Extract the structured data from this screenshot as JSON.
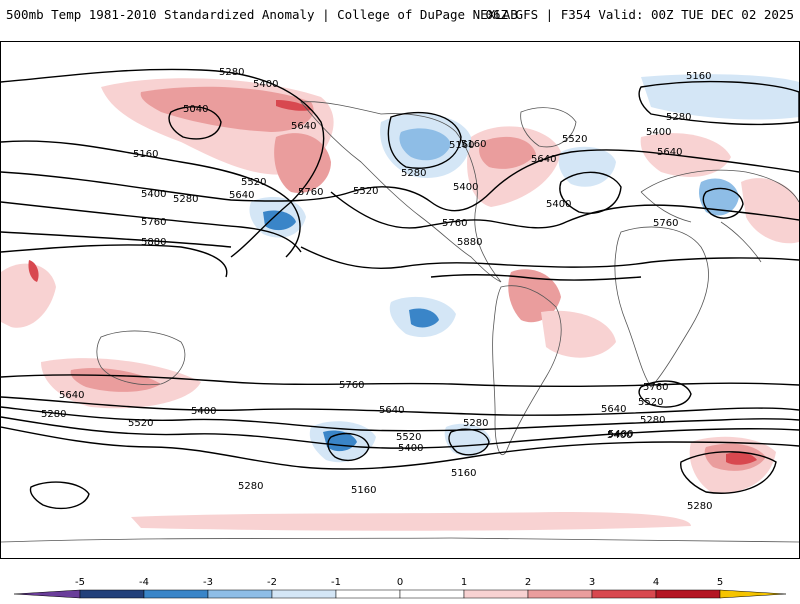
{
  "header": {
    "title_left": "500mb Temp 1981-2010 Standardized Anomaly | College of DuPage NEXLAB",
    "title_right": "06Z GFS | F354 Valid: 00Z TUE DEC 02 2025"
  },
  "colors": {
    "contour": "#000000",
    "coast": "#555555",
    "neg5": "#6a3d9a",
    "neg4": "#22407a",
    "neg3": "#3a85c8",
    "neg2": "#8ebde6",
    "neg1": "#d4e6f6",
    "zero": "#ffffff",
    "pos1": "#f8d2d2",
    "pos2": "#ea9d9d",
    "pos3": "#d8484f",
    "pos4": "#b41523",
    "pos5": "#6e0010",
    "over": "#f5c400"
  },
  "contour_labels": [
    "5280",
    "5400",
    "5040",
    "5640",
    "5160",
    "5400",
    "5280",
    "5520",
    "5640",
    "5760",
    "5760",
    "5880",
    "5160",
    "5280",
    "5160",
    "5400",
    "5520",
    "5760",
    "5880",
    "5520",
    "5640",
    "5400",
    "5160",
    "5400",
    "5280",
    "5640",
    "5760",
    "5640",
    "5400",
    "5760",
    "5520",
    "5400",
    "5280",
    "5640",
    "5520",
    "5400",
    "5280",
    "5160",
    "5280",
    "5760",
    "5640",
    "5520",
    "5400",
    "5280",
    "5160",
    "5280"
  ],
  "colorbar": {
    "ticks": [
      "-5",
      "-4",
      "-3",
      "-2",
      "-1",
      "0",
      "1",
      "2",
      "3",
      "4",
      "5"
    ]
  }
}
